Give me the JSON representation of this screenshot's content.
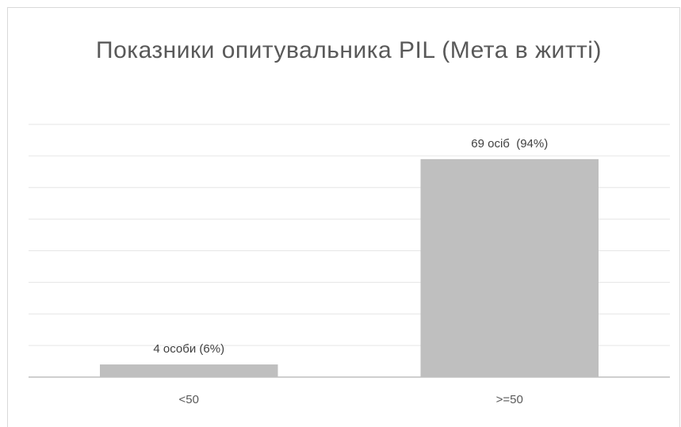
{
  "chart_data": {
    "type": "bar",
    "title": "Показники опитувальника PIL (Мета в житті)",
    "categories": [
      "<50",
      ">=50"
    ],
    "values": [
      4,
      69
    ],
    "data_labels": [
      "4 особи (6%)",
      "69 осіб  (94%)"
    ],
    "percent": [
      6,
      94
    ],
    "ylim": [
      0,
      80
    ],
    "grid": true,
    "y_axis_labels_shown": false,
    "legend": "none",
    "bar_color": "#bfbfbf",
    "grid_color": "#e6e6e6",
    "axis_color": "#bfbfbf"
  }
}
